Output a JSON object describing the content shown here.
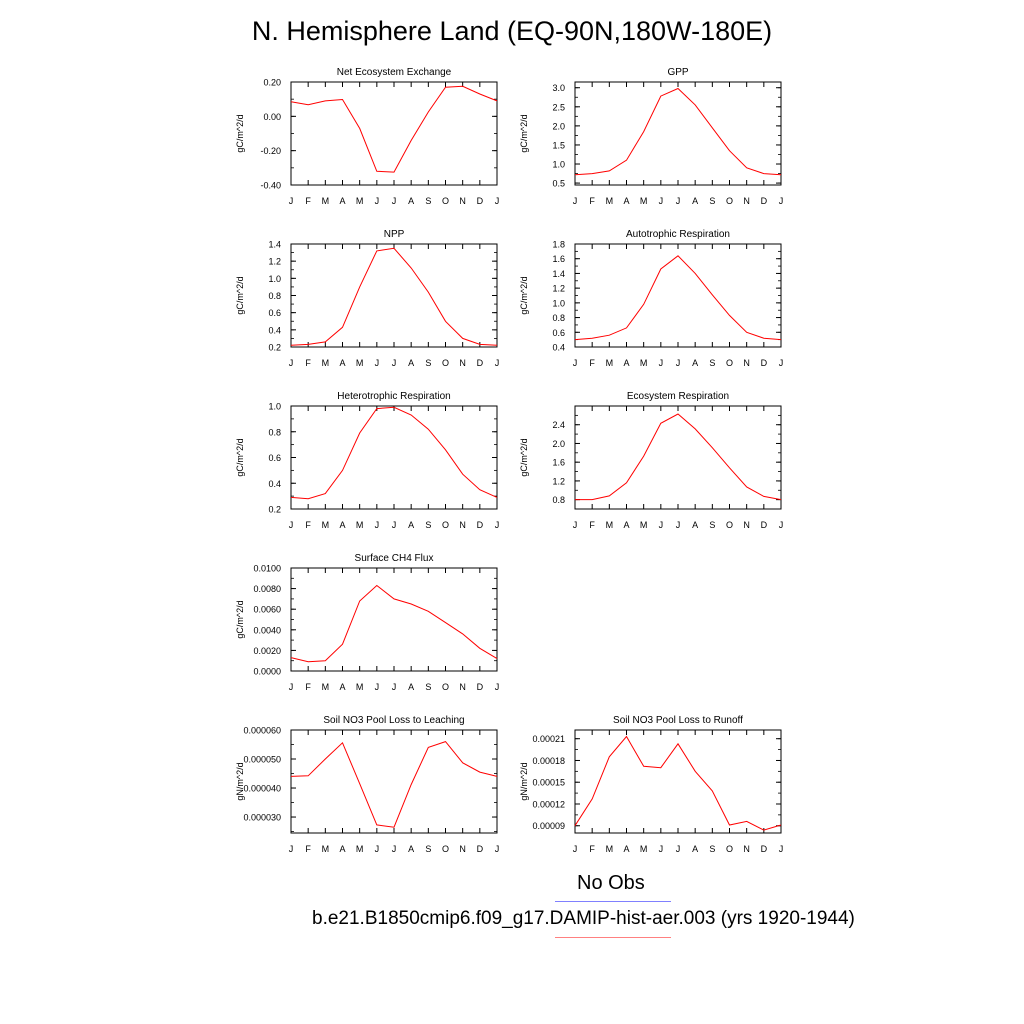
{
  "title": "N. Hemisphere Land (EQ-90N,180W-180E)",
  "legend": {
    "items": [
      {
        "label": "No Obs",
        "color": "#8080ff"
      },
      {
        "label": "b.e21.B1850cmip6.f09_g17.DAMIP-hist-aer.003 (yrs 1920-1944)",
        "color": "#ff8080"
      }
    ]
  },
  "chart_data": [
    {
      "type": "line",
      "title": "Net Ecosystem Exchange",
      "ylabel": "gC/m^2/d",
      "categories": [
        "J",
        "F",
        "M",
        "A",
        "M",
        "J",
        "J",
        "A",
        "S",
        "O",
        "N",
        "D",
        "J"
      ],
      "ylim": [
        -0.4,
        0.2
      ],
      "yticks": [
        "0.20",
        "0.00",
        "-0.20",
        "-0.40"
      ],
      "ytick_values": [
        0.2,
        0.0,
        -0.2,
        -0.4
      ],
      "series": [
        {
          "values": [
            0.085,
            0.068,
            0.09,
            0.098,
            -0.07,
            -0.32,
            -0.325,
            -0.14,
            0.025,
            0.17,
            0.175,
            0.13,
            0.09
          ],
          "color": "#ff0000"
        }
      ]
    },
    {
      "type": "line",
      "title": "GPP",
      "ylabel": "gC/m^2/d",
      "categories": [
        "J",
        "F",
        "M",
        "A",
        "M",
        "J",
        "J",
        "A",
        "S",
        "O",
        "N",
        "D",
        "J"
      ],
      "ylim": [
        0.45,
        3.15
      ],
      "yticks": [
        "3.0",
        "2.5",
        "2.0",
        "1.5",
        "1.0",
        "0.5"
      ],
      "ytick_values": [
        3.0,
        2.5,
        2.0,
        1.5,
        1.0,
        0.5
      ],
      "series": [
        {
          "values": [
            0.72,
            0.75,
            0.82,
            1.1,
            1.85,
            2.78,
            2.98,
            2.55,
            1.95,
            1.35,
            0.9,
            0.75,
            0.72
          ],
          "color": "#ff0000"
        }
      ]
    },
    {
      "type": "line",
      "title": "NPP",
      "ylabel": "gC/m^2/d",
      "categories": [
        "J",
        "F",
        "M",
        "A",
        "M",
        "J",
        "J",
        "A",
        "S",
        "O",
        "N",
        "D",
        "J"
      ],
      "ylim": [
        0.2,
        1.4
      ],
      "yticks": [
        "1.4",
        "1.2",
        "1.0",
        "0.8",
        "0.6",
        "0.4",
        "0.2"
      ],
      "ytick_values": [
        1.4,
        1.2,
        1.0,
        0.8,
        0.6,
        0.4,
        0.2
      ],
      "series": [
        {
          "values": [
            0.22,
            0.23,
            0.26,
            0.43,
            0.9,
            1.32,
            1.35,
            1.12,
            0.84,
            0.5,
            0.3,
            0.23,
            0.22
          ],
          "color": "#ff0000"
        }
      ]
    },
    {
      "type": "line",
      "title": "Autotrophic Respiration",
      "ylabel": "gC/m^2/d",
      "categories": [
        "J",
        "F",
        "M",
        "A",
        "M",
        "J",
        "J",
        "A",
        "S",
        "O",
        "N",
        "D",
        "J"
      ],
      "ylim": [
        0.4,
        1.8
      ],
      "yticks": [
        "1.8",
        "1.6",
        "1.4",
        "1.2",
        "1.0",
        "0.8",
        "0.6",
        "0.4"
      ],
      "ytick_values": [
        1.8,
        1.6,
        1.4,
        1.2,
        1.0,
        0.8,
        0.6,
        0.4
      ],
      "series": [
        {
          "values": [
            0.5,
            0.52,
            0.56,
            0.66,
            0.98,
            1.46,
            1.64,
            1.4,
            1.11,
            0.83,
            0.6,
            0.52,
            0.5
          ],
          "color": "#ff0000"
        }
      ]
    },
    {
      "type": "line",
      "title": "Heterotrophic Respiration",
      "ylabel": "gC/m^2/d",
      "categories": [
        "J",
        "F",
        "M",
        "A",
        "M",
        "J",
        "J",
        "A",
        "S",
        "O",
        "N",
        "D",
        "J"
      ],
      "ylim": [
        0.2,
        1.0
      ],
      "yticks": [
        "1.0",
        "0.8",
        "0.6",
        "0.4",
        "0.2"
      ],
      "ytick_values": [
        1.0,
        0.8,
        0.6,
        0.4,
        0.2
      ],
      "series": [
        {
          "values": [
            0.29,
            0.28,
            0.32,
            0.5,
            0.79,
            0.98,
            0.99,
            0.93,
            0.82,
            0.66,
            0.47,
            0.35,
            0.29
          ],
          "color": "#ff0000"
        }
      ]
    },
    {
      "type": "line",
      "title": "Ecosystem Respiration",
      "ylabel": "gC/m^2/d",
      "categories": [
        "J",
        "F",
        "M",
        "A",
        "M",
        "J",
        "J",
        "A",
        "S",
        "O",
        "N",
        "D",
        "J"
      ],
      "ylim": [
        0.6,
        2.8
      ],
      "yticks": [
        "2.4",
        "2.0",
        "1.6",
        "1.2",
        "0.8"
      ],
      "ytick_values": [
        2.4,
        2.0,
        1.6,
        1.2,
        0.8
      ],
      "series": [
        {
          "values": [
            0.8,
            0.8,
            0.88,
            1.16,
            1.73,
            2.43,
            2.63,
            2.31,
            1.91,
            1.48,
            1.07,
            0.87,
            0.8
          ],
          "color": "#ff0000"
        }
      ]
    },
    {
      "type": "line",
      "title": "Surface CH4 Flux",
      "ylabel": "gC/m^2/d",
      "categories": [
        "J",
        "F",
        "M",
        "A",
        "M",
        "J",
        "J",
        "A",
        "S",
        "O",
        "N",
        "D",
        "J"
      ],
      "ylim": [
        0.0,
        0.01
      ],
      "yticks": [
        "0.0100",
        "0.0080",
        "0.0060",
        "0.0040",
        "0.0020",
        "0.0000"
      ],
      "ytick_values": [
        0.01,
        0.008,
        0.006,
        0.004,
        0.002,
        0.0
      ],
      "series": [
        {
          "values": [
            0.0013,
            0.0009,
            0.001,
            0.0026,
            0.0068,
            0.0083,
            0.007,
            0.0065,
            0.0058,
            0.0047,
            0.0036,
            0.0022,
            0.0012
          ],
          "color": "#ff0000"
        }
      ]
    },
    {
      "type": "line",
      "title": "Soil NO3 Pool Loss to Leaching",
      "ylabel": "gN/m^2/d",
      "categories": [
        "J",
        "F",
        "M",
        "A",
        "M",
        "J",
        "J",
        "A",
        "S",
        "O",
        "N",
        "D",
        "J"
      ],
      "ylim": [
        2.45e-05,
        6e-05
      ],
      "yticks": [
        "0.000060",
        "0.000050",
        "0.000040",
        "0.000030"
      ],
      "ytick_values": [
        6e-05,
        5e-05,
        4e-05,
        3e-05
      ],
      "series": [
        {
          "values": [
            4.4e-05,
            4.42e-05,
            5e-05,
            5.56e-05,
            4.15e-05,
            2.73e-05,
            2.65e-05,
            4.12e-05,
            5.4e-05,
            5.6e-05,
            4.87e-05,
            4.55e-05,
            4.4e-05
          ],
          "color": "#ff0000"
        }
      ]
    },
    {
      "type": "line",
      "title": "Soil NO3 Pool Loss to Runoff",
      "ylabel": "gN/m^2/d",
      "categories": [
        "J",
        "F",
        "M",
        "A",
        "M",
        "J",
        "J",
        "A",
        "S",
        "O",
        "N",
        "D",
        "J"
      ],
      "ylim": [
        8e-05,
        0.000222
      ],
      "yticks": [
        "0.00021",
        "0.00018",
        "0.00015",
        "0.00012",
        "0.00009"
      ],
      "ytick_values": [
        0.00021,
        0.00018,
        0.00015,
        0.00012,
        9e-05
      ],
      "series": [
        {
          "values": [
            9e-05,
            0.000127,
            0.000185,
            0.000213,
            0.000172,
            0.00017,
            0.000203,
            0.000165,
            0.000138,
            9.1e-05,
            9.6e-05,
            8.4e-05,
            9.1e-05
          ],
          "color": "#ff0000"
        }
      ]
    }
  ]
}
